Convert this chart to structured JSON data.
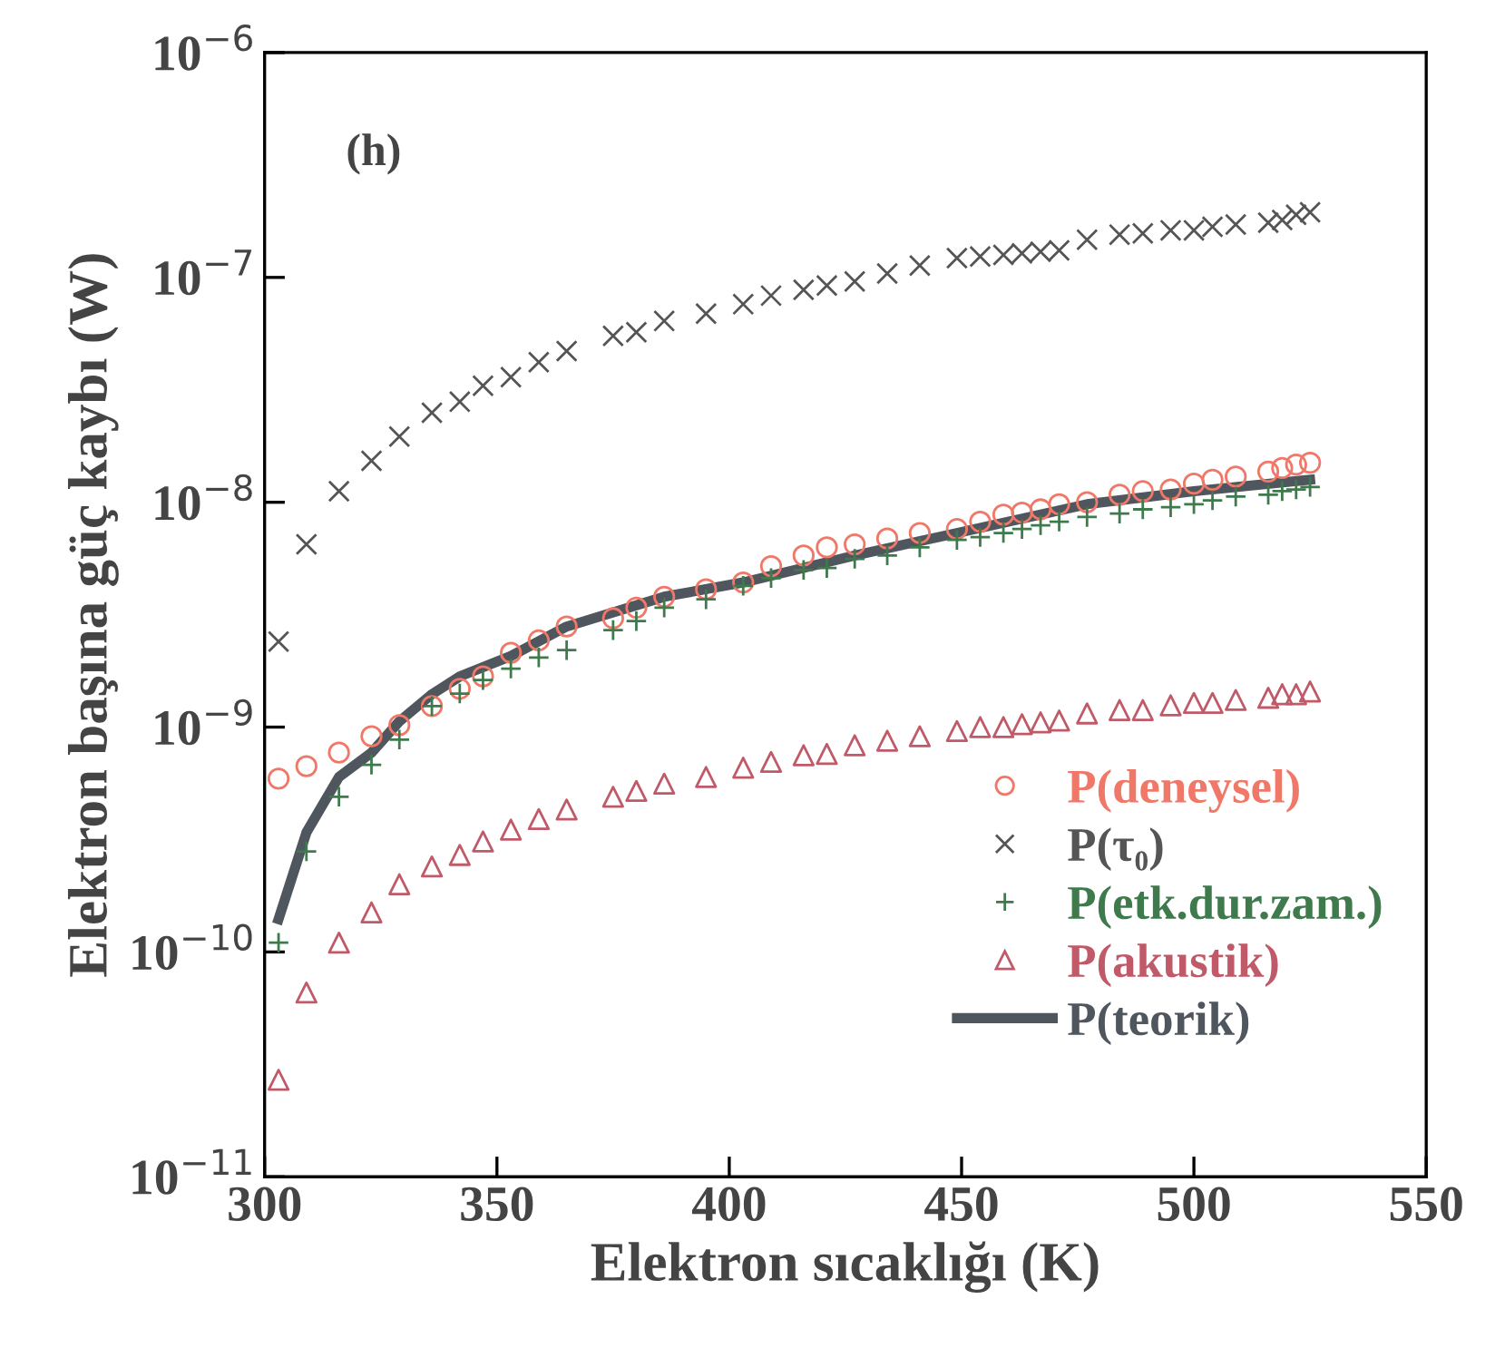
{
  "chart_data": {
    "type": "scatter",
    "xlabel": "Elektron sıcaklığı (K)",
    "ylabel": "Elektron başına güç kaybı (W)",
    "annotations": [
      "(h)"
    ],
    "x": [
      303,
      309,
      316,
      323,
      329,
      336,
      342,
      347,
      353,
      359,
      365,
      375,
      380,
      386,
      395,
      403,
      409,
      416,
      421,
      427,
      434,
      441,
      449,
      454,
      459,
      463,
      467,
      471,
      477,
      484,
      489,
      495,
      500,
      504,
      509,
      516,
      519,
      522,
      525
    ],
    "log": "y",
    "grid": false,
    "legend": "right",
    "xlim": [
      300,
      550
    ],
    "xticks": [
      300,
      350,
      400,
      450,
      500,
      550
    ],
    "ylim": [
      1e-11,
      1e-06
    ],
    "yticks": [
      {
        "value": 1e-11,
        "label": "10$^{−11}$"
      },
      {
        "value": 1e-10,
        "label": "10$^{−10}$"
      },
      {
        "value": 1e-09,
        "label": "10$^{−9}$"
      },
      {
        "value": 1e-08,
        "label": "10$^{−8}$"
      },
      {
        "value": 1e-07,
        "label": "10$^{−7}$"
      },
      {
        "value": 1e-06,
        "label": "10$^{−6}$"
      }
    ],
    "series": [
      {
        "name": "P(deneysel)",
        "color": "#f07868",
        "marker": "circle",
        "values": [
          5.9e-10,
          6.7e-10,
          7.7e-10,
          9.1e-10,
          1.02e-09,
          1.24e-09,
          1.48e-09,
          1.68e-09,
          2.14e-09,
          2.43e-09,
          2.8e-09,
          3.05e-09,
          3.4e-09,
          3.8e-09,
          4.1e-09,
          4.4e-09,
          5.2e-09,
          5.8e-09,
          6.3e-09,
          6.5e-09,
          6.9e-09,
          7.3e-09,
          7.6e-09,
          8.2e-09,
          8.8e-09,
          9e-09,
          9.3e-09,
          9.8e-09,
          1e-08,
          1.08e-08,
          1.12e-08,
          1.14e-08,
          1.21e-08,
          1.26e-08,
          1.3e-08,
          1.37e-08,
          1.42e-08,
          1.47e-08,
          1.5e-08
        ]
      },
      {
        "name": "P(τ₀)",
        "color": "#555555",
        "marker": "cross",
        "values": [
          2.4e-09,
          6.5e-09,
          1.12e-08,
          1.53e-08,
          1.96e-08,
          2.5e-08,
          2.8e-08,
          3.3e-08,
          3.6e-08,
          4.2e-08,
          4.7e-08,
          5.5e-08,
          5.7e-08,
          6.4e-08,
          6.9e-08,
          7.6e-08,
          8.3e-08,
          8.8e-08,
          9.2e-08,
          9.6e-08,
          1.04e-07,
          1.13e-07,
          1.22e-07,
          1.24e-07,
          1.26e-07,
          1.28e-07,
          1.3e-07,
          1.32e-07,
          1.47e-07,
          1.55e-07,
          1.57e-07,
          1.62e-07,
          1.62e-07,
          1.68e-07,
          1.72e-07,
          1.75e-07,
          1.8e-07,
          1.9e-07,
          1.95e-07
        ]
      },
      {
        "name": "P(etk.dur.zam.)",
        "color": "#3e7a4c",
        "marker": "plus",
        "values": [
          1.1e-10,
          2.8e-10,
          4.9e-10,
          6.8e-10,
          8.8e-10,
          1.24e-09,
          1.41e-09,
          1.62e-09,
          1.82e-09,
          2.04e-09,
          2.2e-09,
          2.7e-09,
          2.96e-09,
          3.4e-09,
          3.7e-09,
          4.25e-09,
          4.6e-09,
          5e-09,
          5.1e-09,
          5.6e-09,
          5.8e-09,
          6.3e-09,
          6.8e-09,
          7e-09,
          7.3e-09,
          7.6e-09,
          7.9e-09,
          8.2e-09,
          8.6e-09,
          8.9e-09,
          9.3e-09,
          9.5e-09,
          9.8e-09,
          1.02e-08,
          1.06e-08,
          1.08e-08,
          1.12e-08,
          1.14e-08,
          1.17e-08
        ]
      },
      {
        "name": "P(akustik)",
        "color": "#c05a68",
        "marker": "triangle",
        "values": [
          2.7e-11,
          6.6e-11,
          1.1e-10,
          1.5e-10,
          2e-10,
          2.4e-10,
          2.7e-10,
          3.1e-10,
          3.5e-10,
          3.9e-10,
          4.3e-10,
          4.9e-10,
          5.2e-10,
          5.6e-10,
          6e-10,
          6.6e-10,
          7e-10,
          7.5e-10,
          7.6e-10,
          8.3e-10,
          8.7e-10,
          9.1e-10,
          9.6e-10,
          1e-09,
          1e-09,
          1.03e-09,
          1.05e-09,
          1.07e-09,
          1.15e-09,
          1.19e-09,
          1.19e-09,
          1.25e-09,
          1.28e-09,
          1.28e-09,
          1.32e-09,
          1.35e-09,
          1.4e-09,
          1.4e-09,
          1.44e-09
        ]
      },
      {
        "name": "P(teorik)",
        "type": "line",
        "color": "#4f565e",
        "marker": "none",
        "line_style": "solid",
        "x": [
          303,
          309,
          316,
          323,
          329,
          336,
          342,
          353,
          365,
          386,
          403,
          427,
          449,
          477,
          500,
          525
        ],
        "values": [
          1.4e-10,
          3.4e-10,
          6e-10,
          7.7e-10,
          1.06e-09,
          1.4e-09,
          1.68e-09,
          2.07e-09,
          2.8e-09,
          3.8e-09,
          4.4e-09,
          5.8e-09,
          7.3e-09,
          9.8e-09,
          1.12e-08,
          1.26e-08
        ]
      }
    ]
  }
}
